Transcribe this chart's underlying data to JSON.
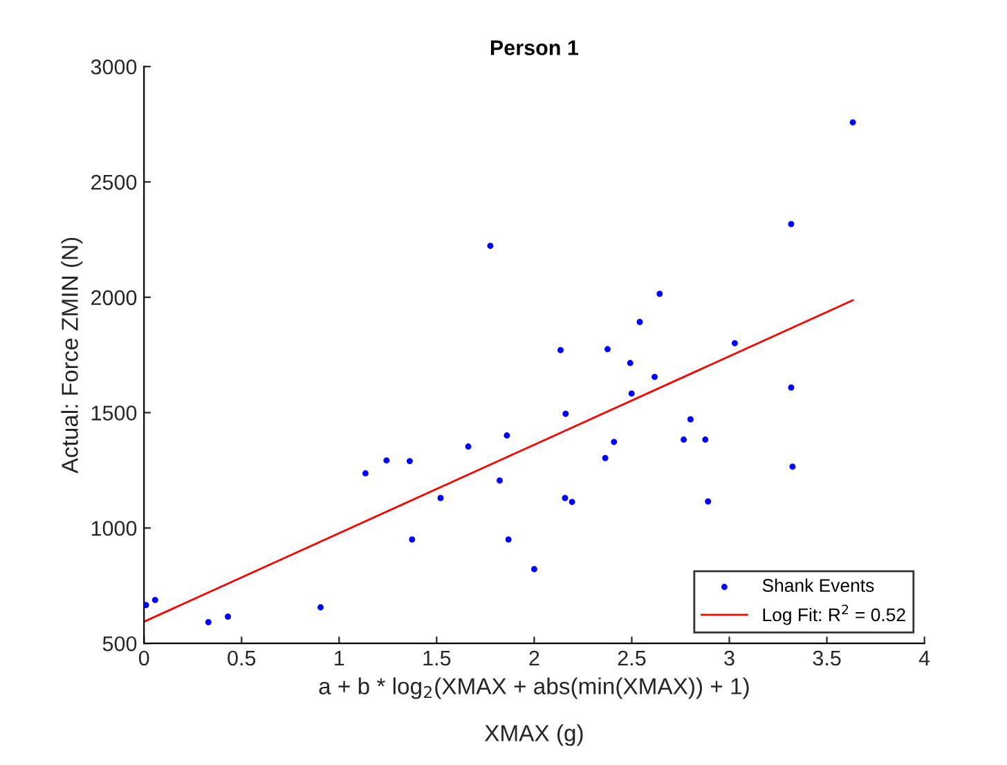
{
  "chart_data": {
    "type": "scatter",
    "title": "Person 1",
    "xlabel": "a + b * log$_{2}$(XMAX + abs(min(XMAX)) + 1)",
    "ylabel": "Actual: Force ZMIN (N)",
    "annotations": [
      "XMAX (g)"
    ],
    "xlim": [
      0,
      4
    ],
    "xticks": [
      0,
      0.5,
      1,
      1.5,
      2,
      2.5,
      3,
      3.5,
      4
    ],
    "ylim": [
      500,
      3000
    ],
    "yticks": [
      500,
      1000,
      1500,
      2000,
      2500,
      3000
    ],
    "grid": false,
    "legend": "bottom right",
    "series": [
      {
        "name": "Shank Events",
        "color": "#0000ff",
        "marker": "circle",
        "x": [
          0.01,
          0.057,
          0.33,
          0.43,
          0.905,
          1.135,
          1.243,
          1.362,
          1.374,
          1.52,
          1.662,
          1.775,
          1.823,
          1.86,
          1.868,
          2.0,
          3.633,
          3.317,
          2.643,
          2.541,
          2.135,
          2.376,
          2.492,
          2.617,
          3.028,
          2.499,
          2.161,
          3.317,
          2.801,
          2.409,
          2.766,
          2.877,
          2.364,
          3.324,
          2.158,
          2.194,
          2.891
        ],
        "values": [
          666,
          688,
          592,
          616,
          656,
          1237,
          1293,
          1290,
          950,
          1130,
          1353,
          2223,
          1206,
          1401,
          950,
          822,
          2758,
          2317,
          2015,
          1893,
          1771,
          1775,
          1715,
          1655,
          1801,
          1583,
          1495,
          1609,
          1471,
          1373,
          1383,
          1383,
          1303,
          1266,
          1130,
          1113,
          1115
        ]
      },
      {
        "name": "Log Fit: R$^{2}$ = 0.52",
        "type": "line",
        "color": "#ff0000",
        "marker": "none",
        "line_style": "solid",
        "x": [
          0,
          3.633
        ],
        "values": [
          594,
          1987
        ]
      }
    ]
  }
}
